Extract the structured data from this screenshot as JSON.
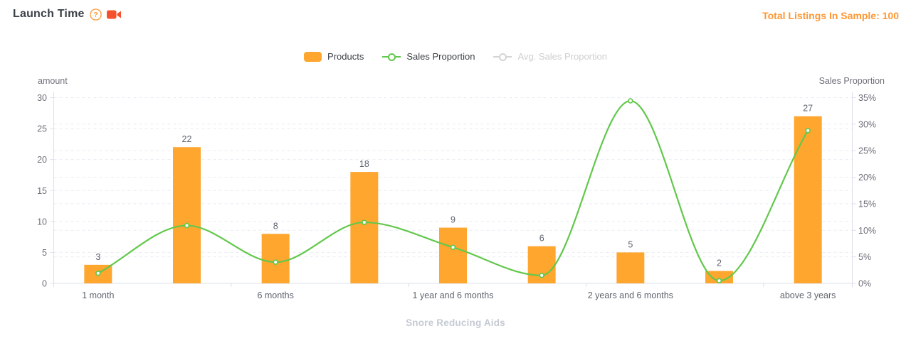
{
  "header": {
    "title": "Launch Time",
    "help_icon": "question-circle-icon",
    "video_icon": "video-camera-icon",
    "total_listings": "Total Listings In Sample: 100"
  },
  "colors": {
    "bar": "#ffa62e",
    "line": "#62c84b",
    "inactive": "#d4d4d4",
    "accent_orange": "#ff9732",
    "camera_red": "#f4512c",
    "grid": "#e7ebf2",
    "axis_line": "#dbe0ea",
    "tick_text": "#6e7079",
    "bar_label_text": "#5e6470",
    "x_label_text": "#5e646e"
  },
  "chart_data": {
    "type": "bar",
    "categories": [
      "1 month",
      "",
      "6 months",
      "",
      "1 year and 6 months",
      "",
      "2 years and 6 months",
      "",
      "above 3 years"
    ],
    "series": [
      {
        "name": "Products",
        "type": "bar",
        "axis": "left",
        "values": [
          3,
          22,
          8,
          18,
          9,
          6,
          5,
          2,
          27
        ]
      },
      {
        "name": "Sales Proportion",
        "type": "line",
        "axis": "right",
        "values_percent": [
          1.9,
          10.9,
          4.0,
          11.5,
          6.8,
          1.5,
          34.4,
          0.5,
          28.8
        ]
      },
      {
        "name": "Avg. Sales Proportion",
        "type": "line",
        "axis": "right",
        "state": "hidden",
        "values_percent": []
      }
    ],
    "legend": [
      "Products",
      "Sales Proportion",
      "Avg. Sales Proportion"
    ],
    "legend_position": "top center",
    "ylabel_left": "amount",
    "ylabel_right": "Sales Proportion",
    "y_left": {
      "min": 0,
      "max": 30,
      "ticks": [
        0,
        5,
        10,
        15,
        20,
        25,
        30
      ]
    },
    "y_right": {
      "min": 0,
      "max": 35,
      "ticks_percent": [
        "0%",
        "5%",
        "10%",
        "15%",
        "20%",
        "25%",
        "30%",
        "35%"
      ]
    },
    "grid": "dashed horizontal, both axes",
    "title": "Launch Time",
    "category_label": "Snore Reducing Aids"
  }
}
